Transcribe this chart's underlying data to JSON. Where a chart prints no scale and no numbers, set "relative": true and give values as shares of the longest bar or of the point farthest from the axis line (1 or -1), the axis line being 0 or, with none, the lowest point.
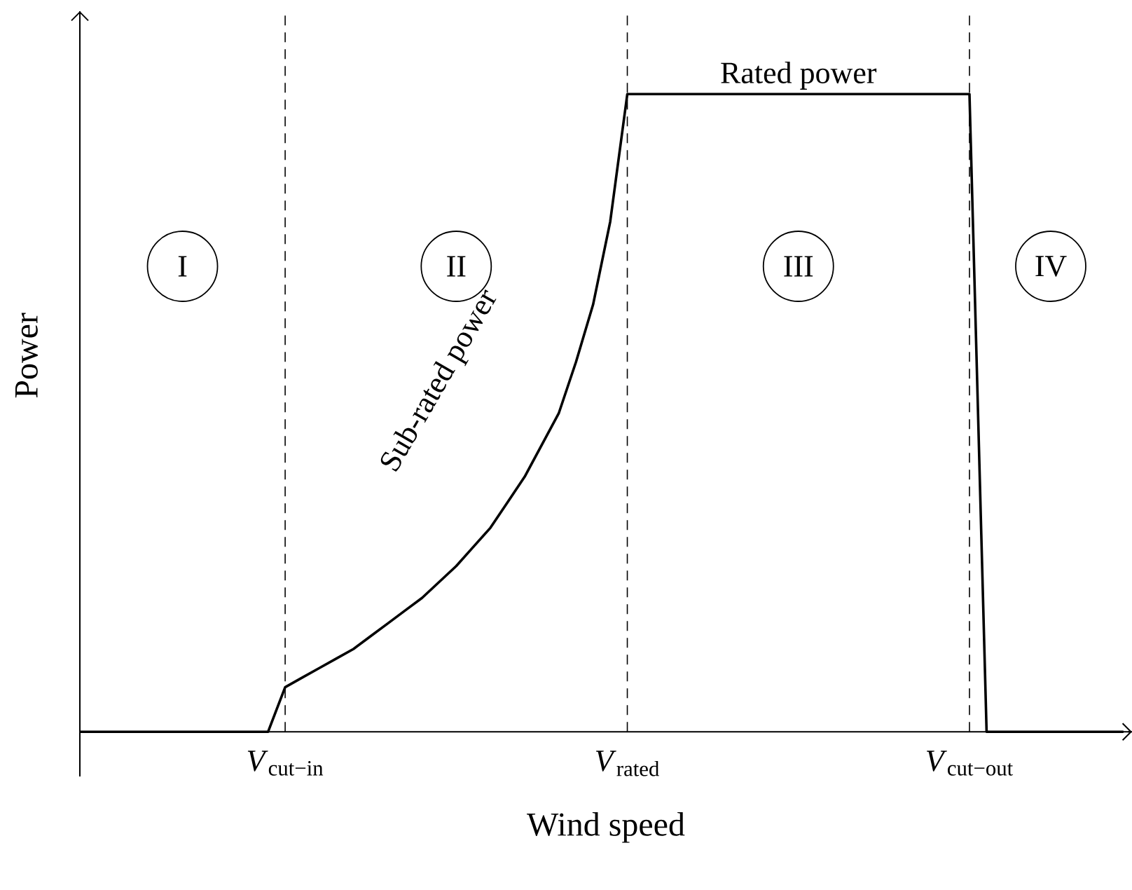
{
  "chart_data": {
    "type": "line",
    "xlabel": "Wind speed",
    "ylabel": "Power",
    "relative": true,
    "color": "#000000",
    "line_style": "solid",
    "categories": [
      null,
      null,
      null,
      null,
      null,
      null,
      null,
      null,
      null,
      null,
      null,
      null,
      "*V*$_{cut−in}$",
      null,
      null,
      null,
      null,
      null,
      null,
      null,
      null,
      null,
      null,
      null,
      null,
      null,
      null,
      null,
      null,
      null,
      null,
      null,
      "*V*$_{rated}$",
      null,
      null,
      null,
      null,
      null,
      null,
      null,
      null,
      null,
      null,
      null,
      null,
      null,
      null,
      null,
      null,
      null,
      null,
      null,
      "*V*$_{cut−out}$",
      null,
      null,
      null,
      null,
      null,
      null,
      null,
      null,
      null
    ],
    "values": [
      0,
      0,
      0,
      0,
      0,
      0,
      0,
      0,
      0,
      0,
      0,
      0,
      0.07,
      0.085,
      0.1,
      0.115,
      0.13,
      0.15,
      0.17,
      0.19,
      0.21,
      0.235,
      0.26,
      0.29,
      0.32,
      0.36,
      0.4,
      0.45,
      0.5,
      0.58,
      0.67,
      0.8,
      1,
      1,
      1,
      1,
      1,
      1,
      1,
      1,
      1,
      1,
      1,
      1,
      1,
      1,
      1,
      1,
      1,
      1,
      1,
      1,
      1,
      0,
      0,
      0,
      0,
      0,
      0,
      0,
      0,
      0
    ],
    "ref_lines": [
      {
        "axis": "x",
        "value": "*V*$_{cut−in}$",
        "line_style": "dashed"
      },
      {
        "axis": "x",
        "value": "*V*$_{rated}$",
        "line_style": "dashed"
      },
      {
        "axis": "x",
        "value": "*V*$_{cut−out}$",
        "line_style": "dashed"
      }
    ],
    "annotations": [
      "I",
      "II",
      "III",
      "IV",
      "Sub-rated power",
      "Rated power"
    ]
  }
}
